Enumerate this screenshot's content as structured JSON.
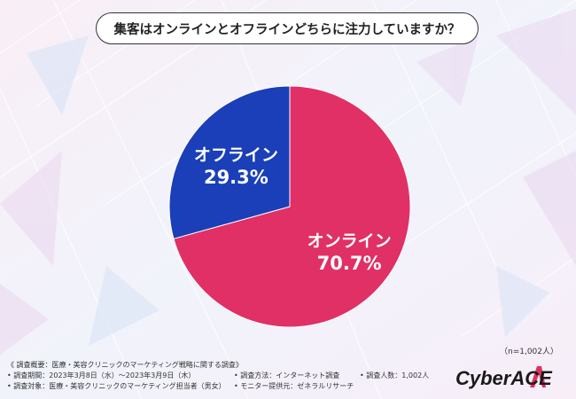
{
  "title": "集客はオンラインとオフラインどちらに注力していますか？",
  "chart_data": {
    "type": "pie",
    "slices": [
      {
        "label": "オンライン",
        "value": 70.7,
        "value_label": "70.7%",
        "color": "#e03065"
      },
      {
        "label": "オフライン",
        "value": 29.3,
        "value_label": "29.3%",
        "color": "#1a3fb8"
      }
    ]
  },
  "sample_size": "（n=1,002人）",
  "footer": {
    "survey_overview": "《 調査概要：医療・美容クリニックのマーケティング戦略に関する調査》",
    "period": "• 調査期間：2023年3月8日（水）～2023年3月9日（木）",
    "target": "• 調査対象：医療・美容クリニックのマーケティング担当者（男女）",
    "method": "• 調査方法：インターネット調査",
    "provider": "• モニター提供元：ゼネラルリサーチ",
    "respondents": "• 調査人数：1,002人"
  },
  "logo_text": "CyberACE"
}
